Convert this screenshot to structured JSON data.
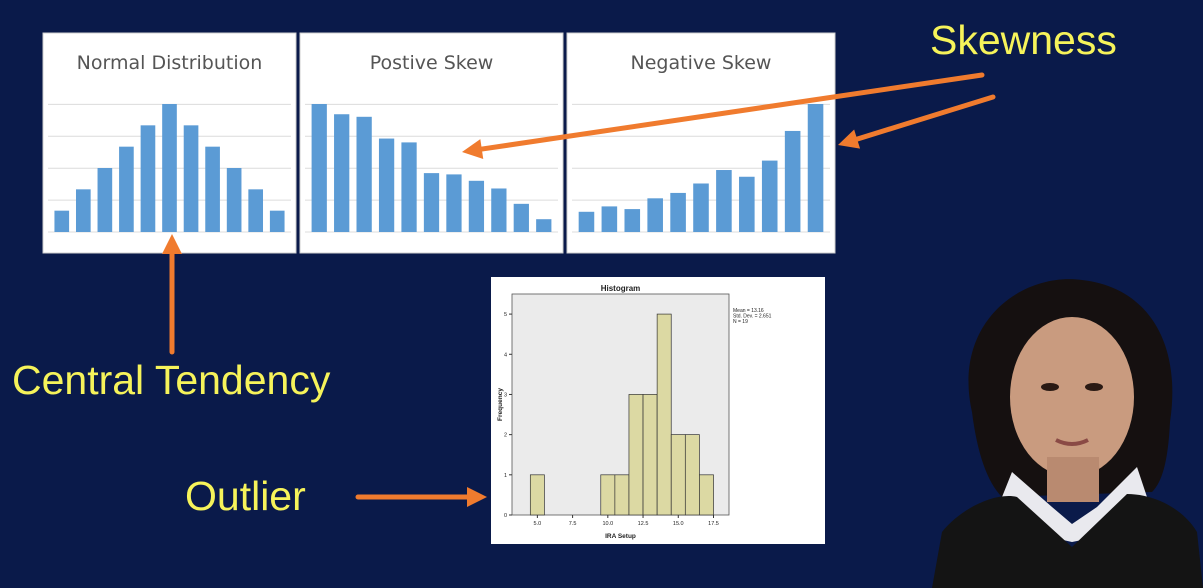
{
  "slide": {
    "background": "#0a1a4a",
    "label_color": "#f6f35a",
    "arrow_color": "#f07b2e",
    "labels": {
      "skewness": "Skewness",
      "central_tendency": "Central Tendency",
      "outlier": "Outlier"
    }
  },
  "chart_data": [
    {
      "type": "bar",
      "title": "Normal Distribution",
      "color": "#5b9bd5",
      "values": [
        1,
        2,
        3,
        4,
        5,
        6,
        5,
        4,
        3,
        2,
        1
      ]
    },
    {
      "type": "bar",
      "title": "Postive Skew",
      "color": "#5b9bd5",
      "values": [
        10,
        9.2,
        9,
        7.3,
        7,
        4.6,
        4.5,
        4,
        3.4,
        2.2,
        1
      ]
    },
    {
      "type": "bar",
      "title": "Negative Skew",
      "color": "#5b9bd5",
      "values": [
        1.5,
        1.9,
        1.7,
        2.5,
        2.9,
        3.6,
        4.6,
        4.1,
        5.3,
        7.5,
        9.5
      ]
    },
    {
      "type": "bar",
      "title": "Histogram",
      "xlabel": "IRA Setup",
      "ylabel": "Frequency",
      "bar_color": "#dcd9a3",
      "plot_bg": "#ebebeb",
      "x_ticks": [
        "5.0",
        "7.5",
        "10.0",
        "12.5",
        "15.0",
        "17.5"
      ],
      "y_ticks": [
        "0",
        "1",
        "2",
        "3",
        "4",
        "5"
      ],
      "bins": [
        {
          "x0": 4.5,
          "x1": 5.5,
          "count": 1
        },
        {
          "x0": 9.5,
          "x1": 10.5,
          "count": 1
        },
        {
          "x0": 10.5,
          "x1": 11.5,
          "count": 1
        },
        {
          "x0": 11.5,
          "x1": 12.5,
          "count": 3
        },
        {
          "x0": 12.5,
          "x1": 13.5,
          "count": 3
        },
        {
          "x0": 13.5,
          "x1": 14.5,
          "count": 5
        },
        {
          "x0": 14.5,
          "x1": 15.5,
          "count": 2
        },
        {
          "x0": 15.5,
          "x1": 16.5,
          "count": 2
        },
        {
          "x0": 16.5,
          "x1": 17.5,
          "count": 1
        }
      ],
      "stats": [
        "Mean = 13.16",
        "Std. Dev. = 2.651",
        "N = 19"
      ]
    }
  ]
}
